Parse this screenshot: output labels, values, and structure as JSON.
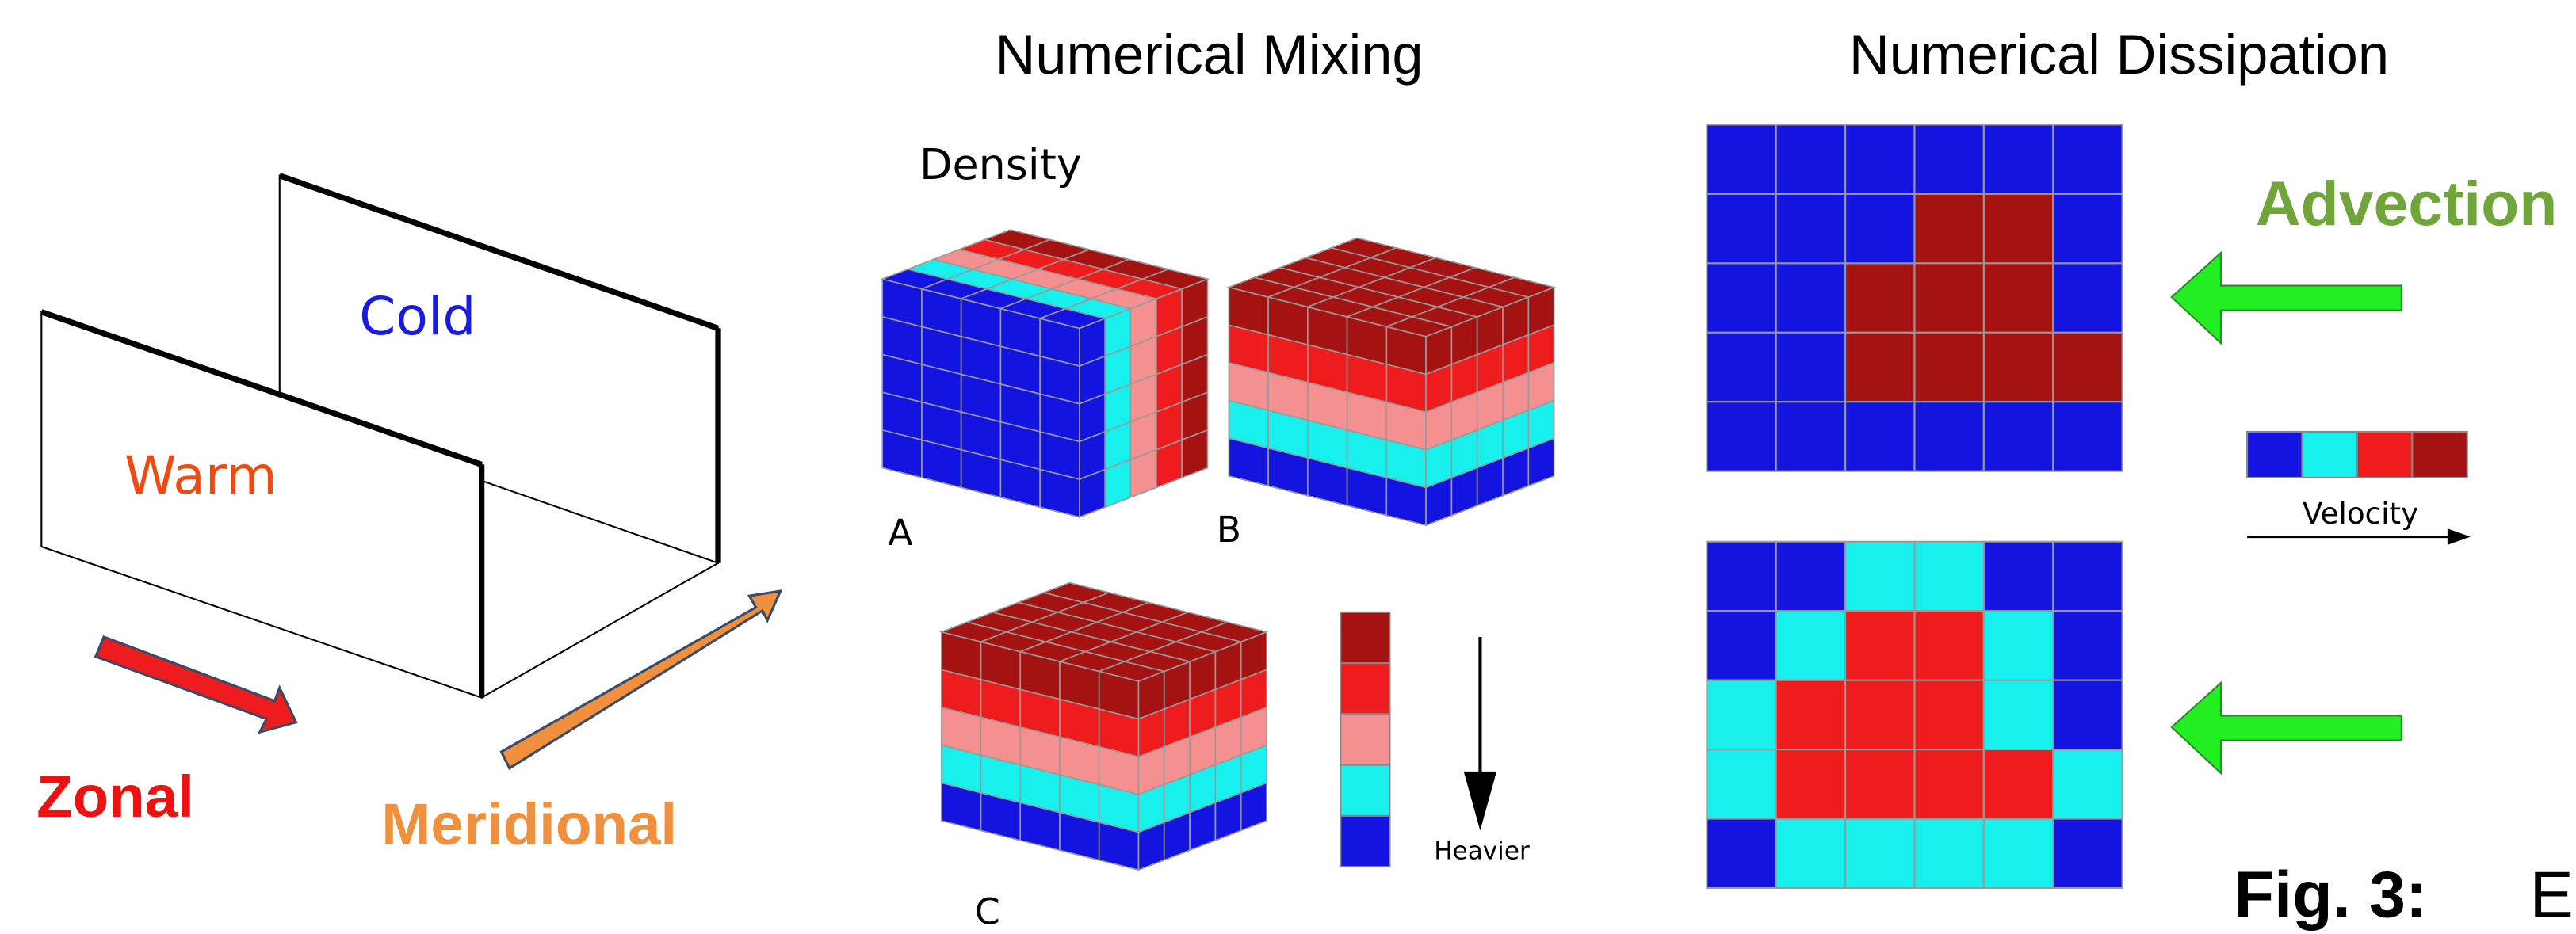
{
  "left_panel": {
    "cold_label": "Cold",
    "warm_label": "Warm",
    "zonal_label": "Zonal",
    "meridional_label": "Meridional"
  },
  "mixing_panel": {
    "title": "Numerical Mixing",
    "density_label": "Density",
    "cube_labels": [
      "A",
      "B",
      "C"
    ],
    "heavier_label": "Heavier"
  },
  "dissipation_panel": {
    "title": "Numerical Dissipation",
    "advection_label": "Advection",
    "velocity_label": "Velocity"
  },
  "caption": {
    "figure_label": "Fig. 3:",
    "caption_start": "E"
  }
}
